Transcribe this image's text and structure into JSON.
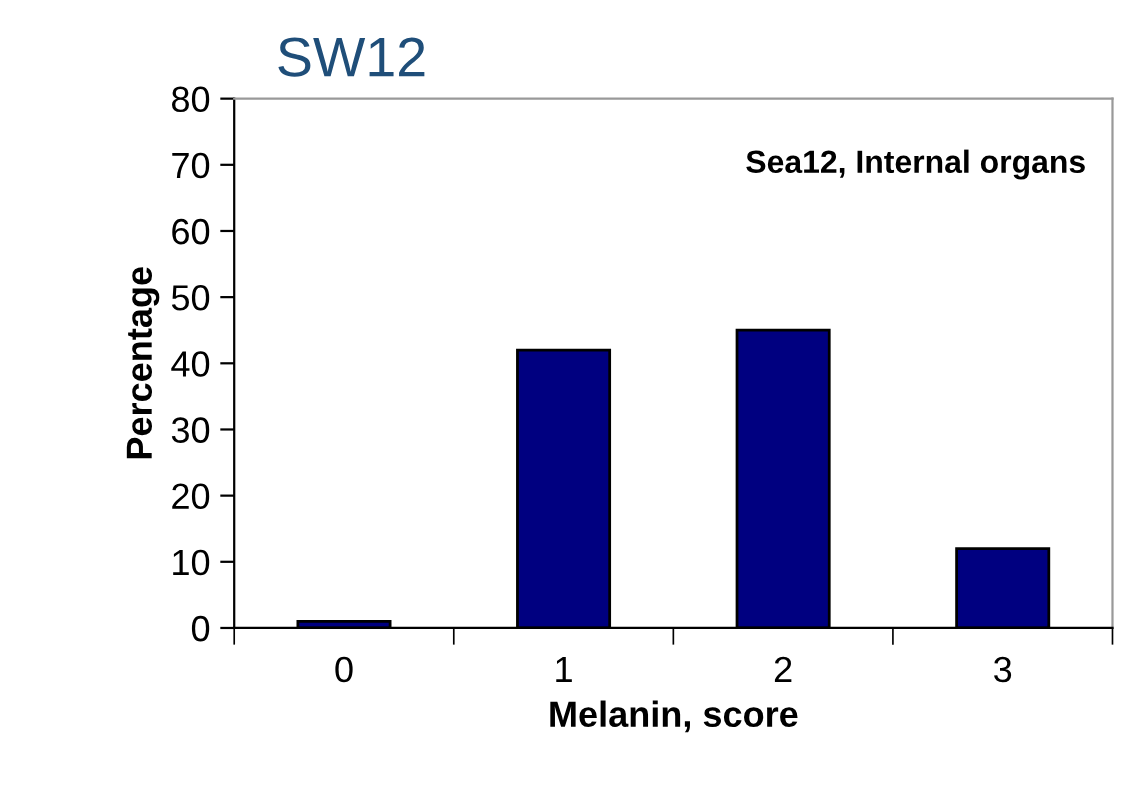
{
  "chart_data": {
    "type": "bar",
    "title": "SW12",
    "xlabel": "Melanin, score",
    "ylabel": "Percentage",
    "categories": [
      "0",
      "1",
      "2",
      "3"
    ],
    "series": [
      {
        "color": "#000080",
        "values": [
          1,
          42,
          45,
          12
        ]
      }
    ],
    "ylim": [
      0,
      80
    ],
    "yticks": [
      0,
      10,
      20,
      30,
      40,
      50,
      60,
      70,
      80
    ],
    "grid": false,
    "legend": false,
    "annotations": [
      "Sea12, Internal organs"
    ]
  }
}
